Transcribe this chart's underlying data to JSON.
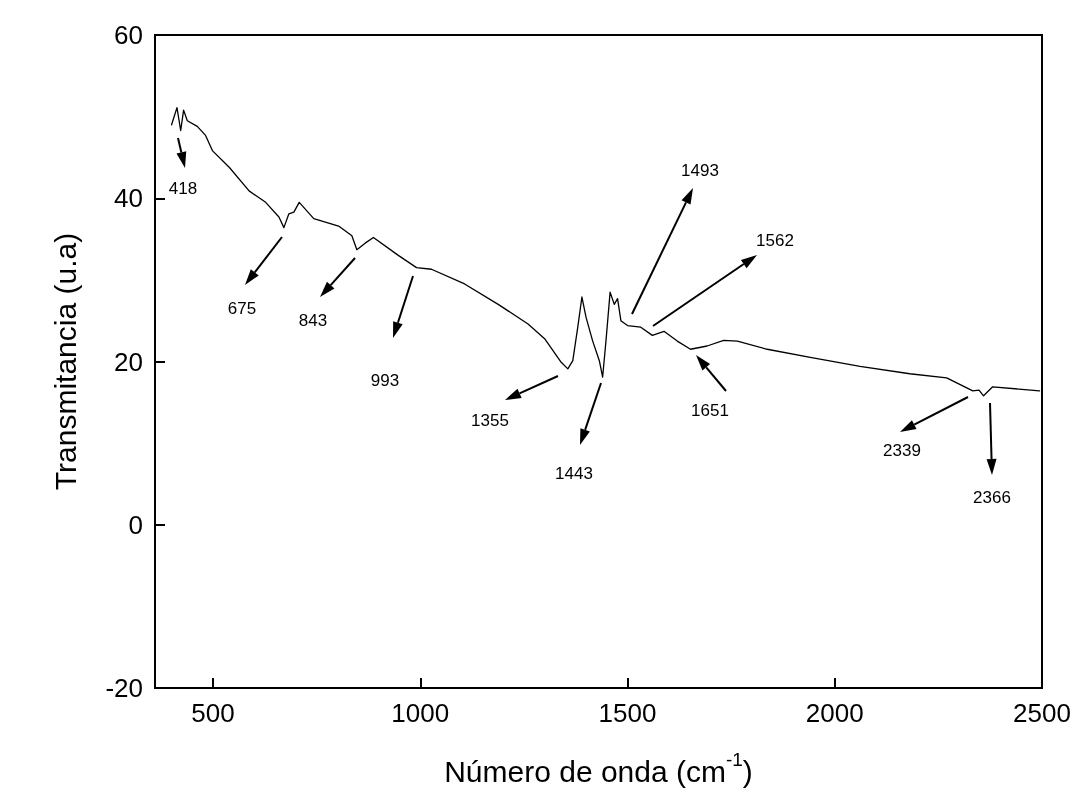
{
  "chart_data": {
    "type": "line",
    "xlabel": "Número de onda (cm$^{-1}$)",
    "ylabel": "Transmitancia (u.a)",
    "xlim": [
      360,
      2500
    ],
    "xticks": [
      500,
      1000,
      1500,
      2000,
      2500
    ],
    "ylim": [
      -20,
      60
    ],
    "yticks": [
      -20,
      0,
      20,
      40,
      60
    ],
    "grid": false,
    "marker": "none",
    "line_style": "solid",
    "series": [
      {
        "color": "#000000",
        "x": [
          400,
          413,
          422,
          429,
          438,
          462,
          482,
          499,
          539,
          587,
          627,
          659,
          671,
          683,
          695,
          708,
          743,
          803,
          835,
          847,
          867,
          887,
          947,
          991,
          1027,
          1107,
          1188,
          1260,
          1300,
          1340,
          1356,
          1368,
          1380,
          1390,
          1400,
          1416,
          1432,
          1440,
          1448,
          1458,
          1468,
          1476,
          1484,
          1500,
          1532,
          1560,
          1588,
          1620,
          1652,
          1692,
          1732,
          1765,
          1837,
          1941,
          2061,
          2181,
          2270,
          2333,
          2348,
          2359,
          2381,
          2494
        ],
        "values": [
          49.0,
          51.1,
          48.3,
          50.8,
          49.5,
          48.8,
          47.7,
          45.8,
          43.8,
          40.9,
          39.5,
          37.7,
          36.4,
          38.1,
          38.3,
          39.5,
          37.5,
          36.6,
          35.4,
          33.7,
          34.5,
          35.2,
          33.0,
          31.5,
          31.3,
          29.5,
          27.0,
          24.6,
          22.8,
          19.9,
          19.1,
          20.1,
          24.2,
          27.9,
          25.4,
          22.5,
          20.1,
          18.1,
          22.5,
          28.5,
          27.0,
          27.7,
          25.0,
          24.4,
          24.2,
          23.2,
          23.7,
          22.5,
          21.5,
          21.9,
          22.6,
          22.5,
          21.5,
          20.5,
          19.4,
          18.5,
          18.0,
          16.4,
          16.5,
          15.8,
          16.9,
          16.4
        ]
      }
    ],
    "annotations": [
      "418",
      "675",
      "843",
      "993",
      "1355",
      "1443",
      "1493",
      "1562",
      "1651",
      "2339",
      "2366"
    ]
  }
}
